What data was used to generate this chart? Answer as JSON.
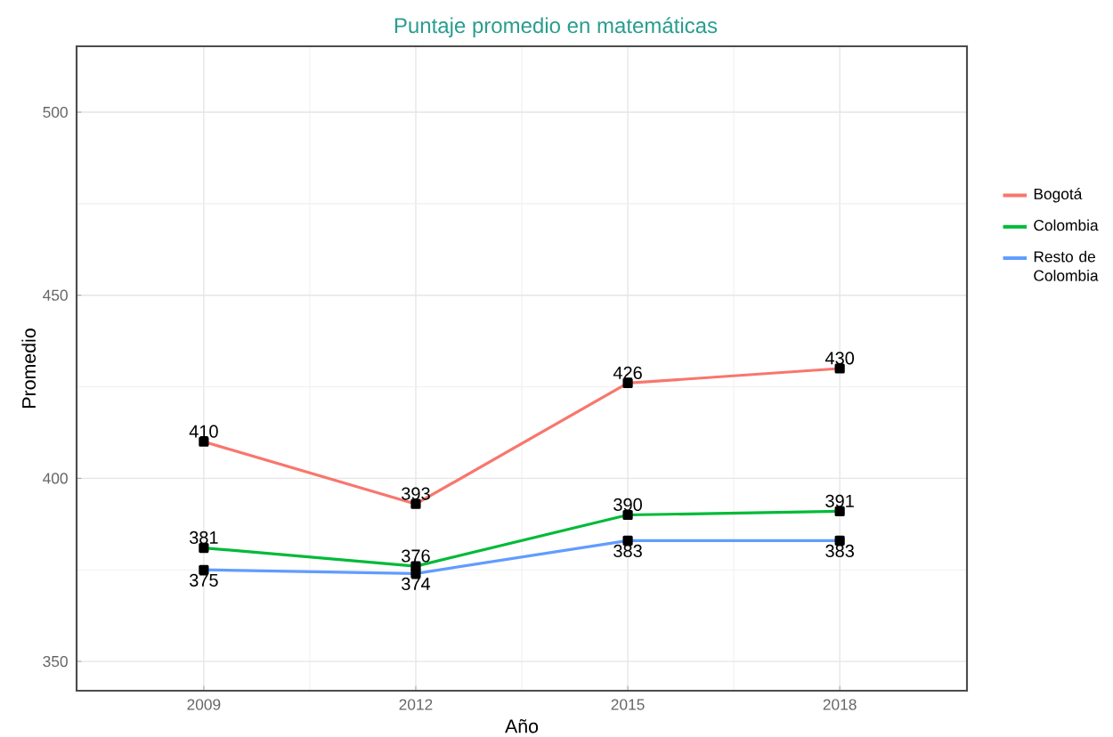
{
  "chart_data": {
    "type": "line",
    "title": "Puntaje promedio en matemáticas",
    "xlabel": "Año",
    "ylabel": "Promedio",
    "x": [
      2009,
      2012,
      2015,
      2018
    ],
    "series": [
      {
        "name": "Bogotá",
        "color": "#f8766d",
        "values": [
          410,
          393,
          426,
          430
        ]
      },
      {
        "name": "Colombia",
        "color": "#00ba38",
        "values": [
          381,
          376,
          390,
          391
        ]
      },
      {
        "name": "Resto de Colombia",
        "color": "#619cff",
        "values": [
          375,
          374,
          383,
          383
        ]
      }
    ],
    "xlim": [
      2007.2,
      2019.8
    ],
    "ylim": [
      342,
      518
    ],
    "xticks": [
      2009,
      2012,
      2015,
      2018
    ],
    "yticks": [
      350,
      400,
      450,
      500
    ],
    "grid": true,
    "legend": "right",
    "marker": "square",
    "line_style": "solid",
    "data_labels": true
  }
}
